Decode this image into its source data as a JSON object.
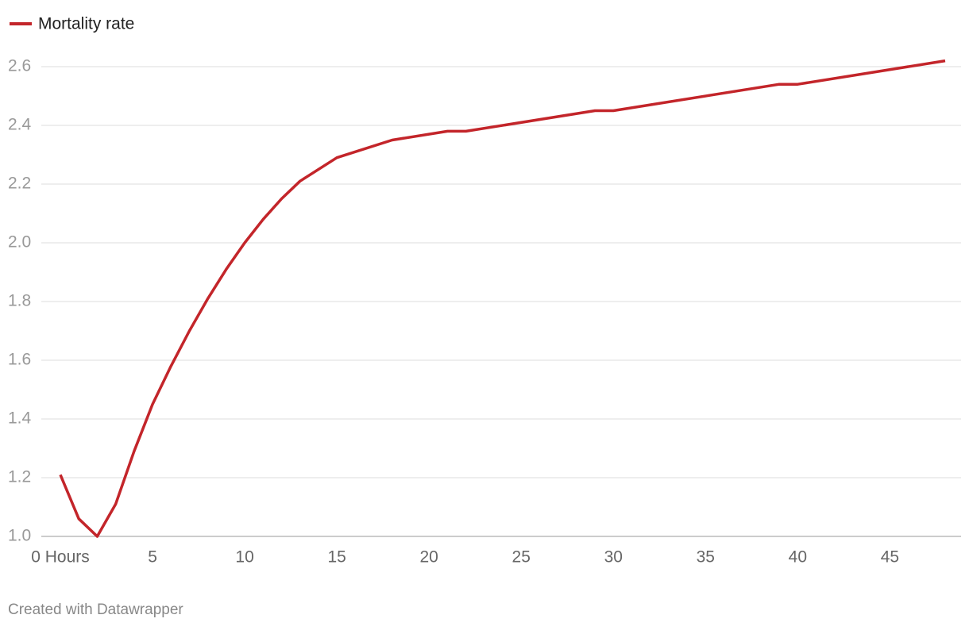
{
  "chart_data": {
    "type": "line",
    "series": [
      {
        "name": "Mortality rate",
        "color": "#c3252a",
        "x": [
          0,
          1,
          2,
          3,
          4,
          5,
          6,
          7,
          8,
          9,
          10,
          11,
          12,
          13,
          15,
          18,
          21,
          22,
          29,
          30,
          39,
          40,
          48
        ],
        "values": [
          1.21,
          1.06,
          1.0,
          1.11,
          1.29,
          1.45,
          1.58,
          1.7,
          1.81,
          1.91,
          2.0,
          2.08,
          2.15,
          2.21,
          2.29,
          2.35,
          2.38,
          2.38,
          2.45,
          2.45,
          2.54,
          2.54,
          2.62
        ]
      }
    ],
    "xlim": [
      0,
      48
    ],
    "xticks": [
      {
        "value": 0,
        "label": "0 Hours"
      },
      5,
      10,
      15,
      20,
      25,
      30,
      35,
      40,
      45
    ],
    "ylim": [
      1,
      2.6
    ],
    "yticks": [
      {
        "value": 1,
        "label": "1.0"
      },
      1.2,
      1.4,
      1.6,
      1.8,
      {
        "value": 2,
        "label": "2.0"
      },
      2.2,
      2.4,
      2.6
    ],
    "grid": true,
    "credit": "Created with Datawrapper"
  }
}
